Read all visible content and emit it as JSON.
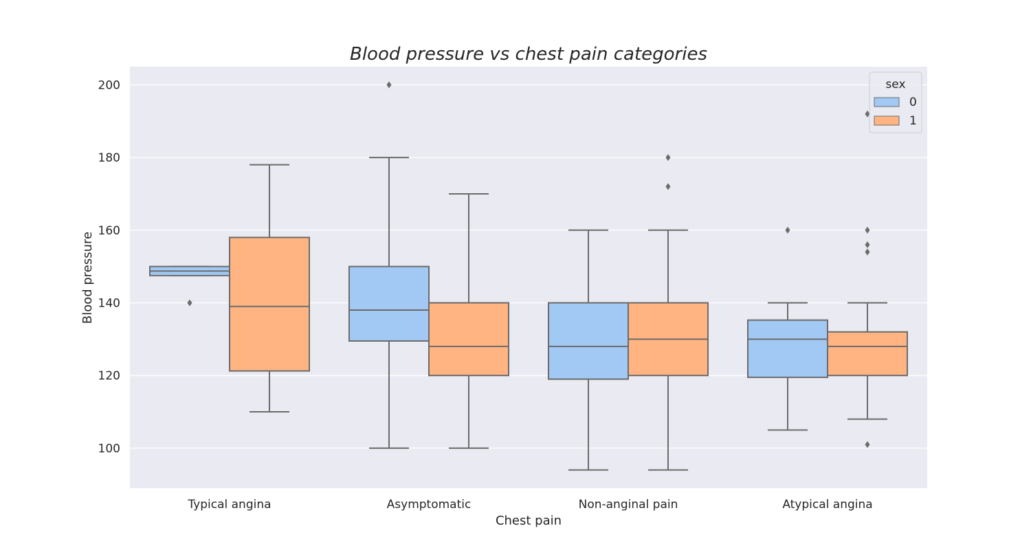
{
  "chart_data": {
    "type": "box",
    "title": "Blood pressure vs chest pain categories",
    "xlabel": "Chest pain",
    "ylabel": "Blood pressure",
    "ylim": [
      89,
      205
    ],
    "yticks": [
      100,
      120,
      140,
      160,
      180,
      200
    ],
    "grid": true,
    "legend_placement": "top-right",
    "legend_title": "sex",
    "categories": [
      "Typical angina",
      "Asymptomatic",
      "Non-anginal pain",
      "Atypical angina"
    ],
    "series": [
      {
        "name": "0",
        "color": "#a1c9f4",
        "boxes": [
          {
            "whisker_low": 147.5,
            "q1": 147.5,
            "median": 148.75,
            "q3": 150,
            "whisker_high": 150,
            "outliers": [
              140
            ]
          },
          {
            "whisker_low": 100,
            "q1": 129.5,
            "median": 138,
            "q3": 150,
            "whisker_high": 180,
            "outliers": [
              200
            ]
          },
          {
            "whisker_low": 94,
            "q1": 119,
            "median": 128,
            "q3": 140,
            "whisker_high": 160,
            "outliers": []
          },
          {
            "whisker_low": 105,
            "q1": 119.5,
            "median": 130,
            "q3": 135.25,
            "whisker_high": 140,
            "outliers": [
              160
            ]
          }
        ]
      },
      {
        "name": "1",
        "color": "#ffb482",
        "boxes": [
          {
            "whisker_low": 110,
            "q1": 121.25,
            "median": 139,
            "q3": 158,
            "whisker_high": 178,
            "outliers": []
          },
          {
            "whisker_low": 100,
            "q1": 120,
            "median": 128,
            "q3": 140,
            "whisker_high": 170,
            "outliers": []
          },
          {
            "whisker_low": 94,
            "q1": 120,
            "median": 130,
            "q3": 140,
            "whisker_high": 160,
            "outliers": [
              172,
              180
            ]
          },
          {
            "whisker_low": 108,
            "q1": 120,
            "median": 128,
            "q3": 132,
            "whisker_high": 140,
            "outliers": [
              101,
              154,
              156,
              160,
              192
            ]
          }
        ]
      }
    ]
  }
}
